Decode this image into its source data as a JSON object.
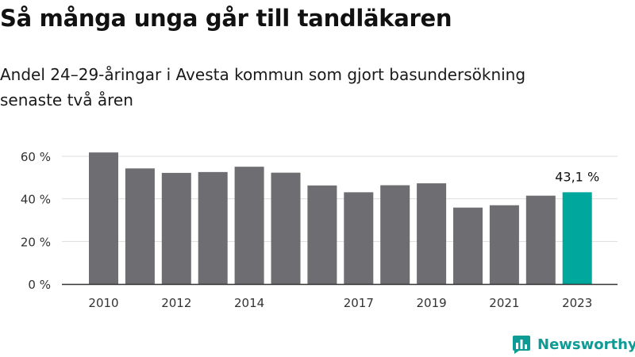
{
  "title": "Så många unga går till tandläkaren",
  "subtitle": "Andel 24–29-åringar i Avesta kommun som gjort basundersökning senaste två åren",
  "brand": "Newsworthy",
  "colors": {
    "bar": "#6e6d72",
    "highlight": "#00a79d",
    "brand": "#0d9b94"
  },
  "chart_data": {
    "type": "bar",
    "x": [
      2010,
      2011,
      2012,
      2013,
      2014,
      2015,
      2016,
      2017,
      2018,
      2019,
      2020,
      2021,
      2022,
      2023
    ],
    "values": [
      61.8,
      54.3,
      52.2,
      52.6,
      55.1,
      52.3,
      46.3,
      43.1,
      46.4,
      47.3,
      35.9,
      37.0,
      41.5,
      43.1
    ],
    "x_tick_labels": [
      "2010",
      "2012",
      "2014",
      "2017",
      "2019",
      "2021",
      "2023"
    ],
    "y_ticks": [
      "0 %",
      "20 %",
      "40 %",
      "60 %"
    ],
    "ylim": [
      0,
      60
    ],
    "grid": true,
    "highlight": {
      "x": 2023,
      "label": "43,1 %"
    }
  }
}
